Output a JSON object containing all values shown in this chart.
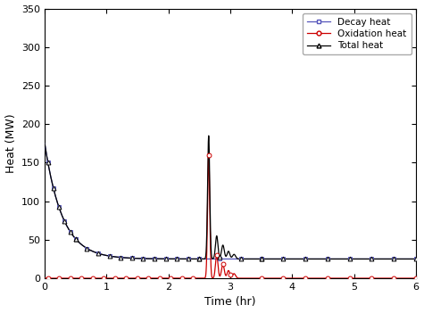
{
  "title": "",
  "xlabel": "Time (hr)",
  "ylabel": "Heat (MW)",
  "xlim": [
    0,
    6
  ],
  "ylim": [
    0,
    350
  ],
  "yticks": [
    0,
    50,
    100,
    150,
    200,
    250,
    300,
    350
  ],
  "xticks": [
    0,
    1,
    2,
    3,
    4,
    5,
    6
  ],
  "decay_color": "#5555bb",
  "oxidation_color": "#cc0000",
  "total_color": "#000000",
  "legend_labels": [
    "Decay heat",
    "Oxidation heat",
    "Total heat"
  ],
  "legend_loc": "upper right",
  "figsize": [
    4.75,
    3.51
  ],
  "dpi": 100
}
